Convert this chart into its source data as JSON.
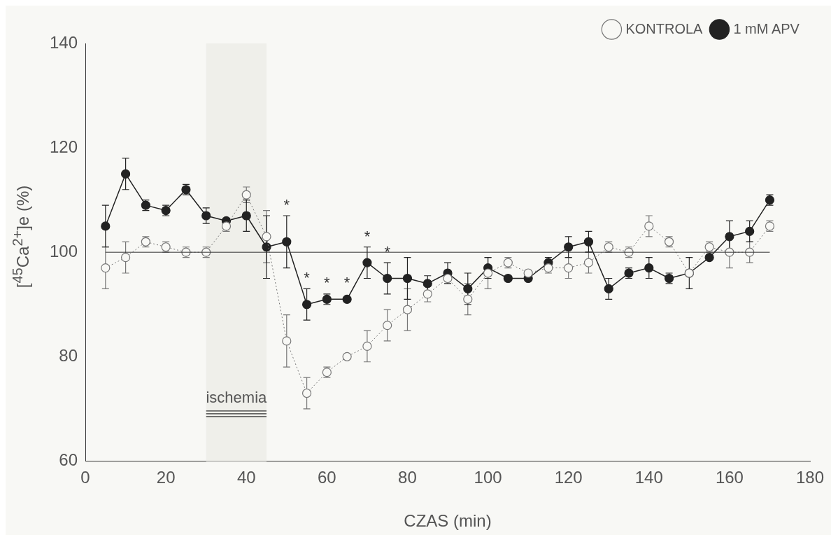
{
  "chart_data": {
    "type": "line",
    "xlabel": "CZAS (min)",
    "ylabel": "[$^{45}$Ca$^{2+}$]e (%)",
    "x": [
      5,
      10,
      15,
      20,
      25,
      30,
      35,
      40,
      45,
      50,
      55,
      60,
      65,
      70,
      75,
      80,
      85,
      90,
      95,
      100,
      105,
      110,
      115,
      120,
      125,
      130,
      135,
      140,
      145,
      150,
      155,
      160,
      165,
      170
    ],
    "series": [
      {
        "name": "KONTROLA",
        "color": "#777777",
        "line_style": "dotted",
        "marker": "circle",
        "values": [
          97,
          99,
          102,
          101,
          100,
          100,
          105,
          111,
          103,
          83,
          73,
          77,
          80,
          82,
          86,
          89,
          92,
          95,
          91,
          96,
          98,
          96,
          97,
          97,
          98,
          101,
          100,
          105,
          102,
          96,
          101,
          100,
          100,
          105
        ],
        "errors": [
          4,
          3,
          1,
          1,
          1,
          1,
          1,
          1.5,
          5,
          5,
          3,
          1,
          0.5,
          3,
          3,
          4,
          1.5,
          null,
          3,
          3,
          1,
          null,
          1,
          2,
          2,
          1,
          1,
          2,
          1,
          null,
          1,
          3,
          2,
          1
        ]
      },
      {
        "name": "1 mM APV",
        "color": "#222222",
        "line_style": "solid",
        "marker": "circle",
        "values": [
          105,
          115,
          109,
          108,
          112,
          107,
          106,
          107,
          101,
          102,
          90,
          91,
          91,
          98,
          95,
          95,
          94,
          96,
          93,
          97,
          95,
          95,
          98,
          101,
          102,
          93,
          96,
          97,
          95,
          96,
          99,
          103,
          104,
          110
        ],
        "errors": [
          4,
          3,
          1,
          1,
          1,
          1.5,
          0.5,
          3,
          6,
          5,
          3,
          1,
          null,
          3,
          3,
          4,
          1.5,
          2,
          3,
          2,
          null,
          null,
          1,
          2,
          2,
          2,
          1,
          2,
          1,
          3,
          null,
          3,
          2,
          1
        ]
      }
    ],
    "xlim": [
      0,
      180
    ],
    "xticks": [
      0,
      20,
      40,
      60,
      80,
      100,
      120,
      140,
      160,
      180
    ],
    "ylim": [
      60,
      140
    ],
    "yticks": [
      60,
      80,
      100,
      120,
      140
    ],
    "grid": false,
    "legend": "top right",
    "ref_lines": [
      {
        "axis": "y",
        "value": 100
      }
    ],
    "bands": [
      {
        "axis": "x",
        "from": 30,
        "to": 45,
        "label": "ischemia"
      }
    ],
    "annotations": [
      {
        "text": "*",
        "x": 50,
        "y": 102
      },
      {
        "text": "*",
        "x": 55,
        "y": 90
      },
      {
        "text": "*",
        "x": 60,
        "y": 91
      },
      {
        "text": "*",
        "x": 65,
        "y": 91
      },
      {
        "text": "*",
        "x": 70,
        "y": 98
      },
      {
        "text": "*",
        "x": 75,
        "y": 95
      }
    ]
  }
}
